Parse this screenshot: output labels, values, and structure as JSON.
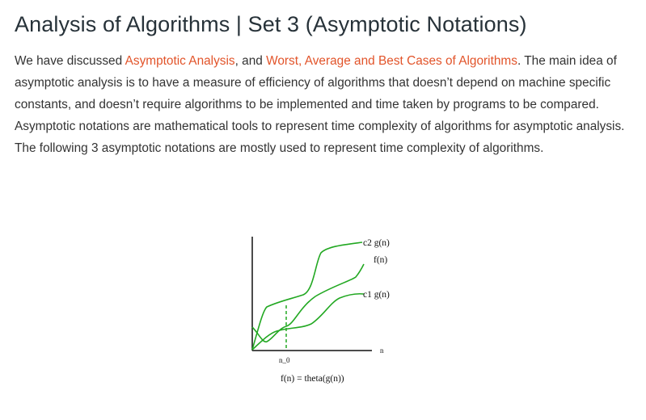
{
  "article": {
    "title": "Analysis of Algorithms | Set 3 (Asymptotic Notations)",
    "intro": {
      "text_1": "We have discussed ",
      "link_1": "Asymptotic Analysis",
      "text_2": ", and ",
      "link_2": "Worst, Average and Best Cases of Algorithms",
      "text_3": ". The main idea of asymptotic analysis is to have a measure of efficiency of algorithms that doesn’t depend on machine specific constants, and doesn’t require algorithms to be implemented and time taken by programs to be compared. Asymptotic notations are mathematical tools to represent time complexity of algorithms for asymptotic analysis. The following 3 asymptotic notations are mostly used to represent time complexity of algorithms."
    },
    "link_color": "#e2542a"
  },
  "figure": {
    "curve_color": "#22a822",
    "labels": {
      "c2g": "c2 g(n)",
      "f": "f(n)",
      "c1g": "c1 g(n)",
      "n_axis": "n",
      "n0": "n_0",
      "caption": "f(n) = theta(g(n))"
    }
  }
}
